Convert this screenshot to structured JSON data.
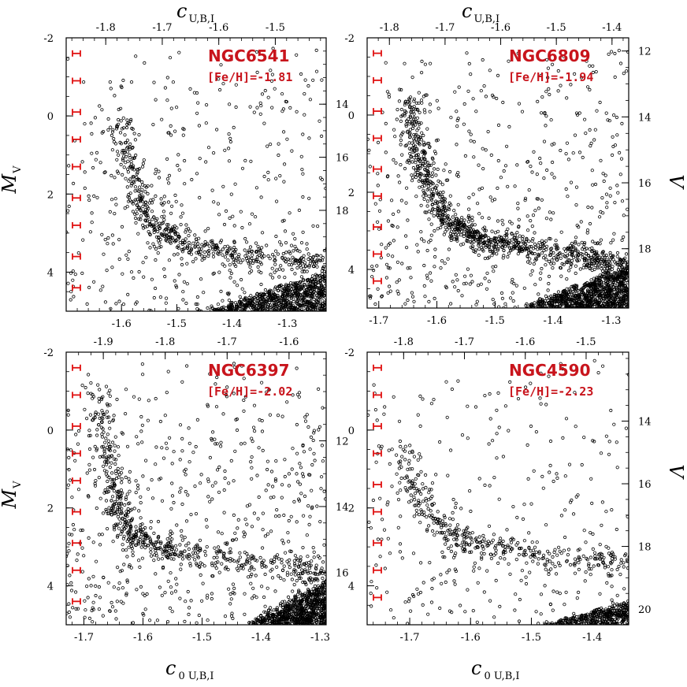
{
  "colors": {
    "label": "#c8141c",
    "errorbar": "#e01010",
    "points": "#000000",
    "frame": "#000000"
  },
  "axis_titles": {
    "top_main": "c",
    "top_sub": "U,B,I",
    "bottom_main": "c",
    "bottom_sub": "0 U,B,I",
    "left_main": "M",
    "left_sub": "V",
    "right": "V"
  },
  "chart_data": [
    {
      "type": "scatter",
      "cluster": "NGC6541",
      "feh_label": "[Fe/H]=-1.81",
      "xlim": [
        -1.7,
        -1.23
      ],
      "ylim": [
        5.0,
        -2.0
      ],
      "xticks": [
        -1.6,
        -1.5,
        -1.4,
        -1.3
      ],
      "xtick_labels": [
        "-1.6",
        "-1.5",
        "-1.4",
        "-1.3"
      ],
      "yticks": [
        -2,
        0,
        2,
        4
      ],
      "ytick_labels": [
        "-2",
        "0",
        "2",
        "4"
      ],
      "top_xlim": [
        -1.87,
        -1.41
      ],
      "top_xticks": [
        -1.8,
        -1.7,
        -1.6,
        -1.5
      ],
      "top_xtick_labels": [
        "-1.8",
        "-1.7",
        "-1.6",
        "-1.5"
      ],
      "right_ylim": [
        11.5,
        21.8
      ],
      "right_yticks": [
        14,
        16,
        18
      ],
      "right_ytick_labels": [
        "14",
        "16",
        "18"
      ],
      "errorbar_y": [
        -1.6,
        -0.9,
        -0.1,
        0.6,
        1.3,
        2.1,
        2.8,
        3.6,
        4.4
      ],
      "errorbar_halfwidth": 0.006,
      "sequence": {
        "rgb": [
          [
            -1.6,
            0.0
          ],
          [
            -1.59,
            1.0
          ],
          [
            -1.575,
            1.8
          ],
          [
            -1.555,
            2.5
          ],
          [
            -1.525,
            3.0
          ],
          [
            -1.48,
            3.3
          ],
          [
            -1.4,
            3.5
          ],
          [
            -1.3,
            3.7
          ],
          [
            -1.23,
            3.85
          ]
        ],
        "ms_xrange": [
          -1.45,
          -1.23
        ],
        "ms_top": 4.0
      },
      "n_rgb": 520,
      "n_field": 420,
      "n_ms": 900
    },
    {
      "type": "scatter",
      "cluster": "NGC6809",
      "feh_label": "[Fe/H]=-1.94",
      "xlim": [
        -1.72,
        -1.27
      ],
      "ylim": [
        5.0,
        -2.0
      ],
      "xticks": [
        -1.7,
        -1.6,
        -1.5,
        -1.4,
        -1.3
      ],
      "xtick_labels": [
        "-1.7",
        "-1.6",
        "-1.5",
        "-1.4",
        "-1.3"
      ],
      "yticks": [
        -2,
        0,
        2,
        4
      ],
      "ytick_labels": [
        "-2",
        "0",
        "2",
        "4"
      ],
      "top_xlim": [
        -1.84,
        -1.37
      ],
      "top_xticks": [
        -1.8,
        -1.7,
        -1.6,
        -1.5,
        -1.4
      ],
      "top_xtick_labels": [
        "-1.8",
        "-1.7",
        "-1.6",
        "-1.5",
        "-1.4"
      ],
      "right_ylim": [
        11.6,
        19.8
      ],
      "right_yticks": [
        12,
        14,
        16,
        18
      ],
      "right_ytick_labels": [
        "12",
        "14",
        "16",
        "18"
      ],
      "errorbar_y": [
        -1.6,
        -0.9,
        -0.1,
        0.6,
        1.4,
        2.1,
        2.9,
        3.6,
        4.3
      ],
      "errorbar_halfwidth": 0.006,
      "sequence": {
        "rgb": [
          [
            -1.645,
            -0.5
          ],
          [
            -1.64,
            0.5
          ],
          [
            -1.625,
            1.4
          ],
          [
            -1.6,
            2.3
          ],
          [
            -1.57,
            2.9
          ],
          [
            -1.52,
            3.25
          ],
          [
            -1.45,
            3.45
          ],
          [
            -1.35,
            3.7
          ],
          [
            -1.27,
            3.9
          ]
        ],
        "ms_xrange": [
          -1.45,
          -1.27
        ],
        "ms_top": 3.9
      },
      "n_rgb": 900,
      "n_field": 520,
      "n_ms": 1100
    },
    {
      "type": "scatter",
      "cluster": "NGC6397",
      "feh_label": "[Fe/H]=-2.02",
      "xlim": [
        -1.73,
        -1.29
      ],
      "ylim": [
        5.0,
        -2.0
      ],
      "xticks": [
        -1.7,
        -1.6,
        -1.5,
        -1.4,
        -1.3
      ],
      "xtick_labels": [
        "-1.7",
        "-1.6",
        "-1.5",
        "-1.4",
        "-1.3"
      ],
      "yticks": [
        -2,
        0,
        2,
        4
      ],
      "ytick_labels": [
        "-2",
        "0",
        "2",
        "4"
      ],
      "top_xlim": [
        -1.96,
        -1.54
      ],
      "top_xticks": [
        -1.9,
        -1.8,
        -1.7,
        -1.6
      ],
      "top_xtick_labels": [
        "-1.9",
        "-1.8",
        "-1.7",
        "-1.6"
      ],
      "right_ylim": [
        9.3,
        17.6
      ],
      "right_yticks": [
        12,
        14,
        16
      ],
      "right_ytick_labels": [
        "12",
        "14",
        "16"
      ],
      "errorbar_y": [
        -1.6,
        -0.9,
        -0.1,
        0.6,
        1.3,
        2.1,
        2.9,
        3.6,
        4.4
      ],
      "errorbar_halfwidth": 0.006,
      "sequence": {
        "rgb": [
          [
            -1.68,
            -1.0
          ],
          [
            -1.67,
            0.0
          ],
          [
            -1.655,
            1.0
          ],
          [
            -1.645,
            1.8
          ],
          [
            -1.63,
            2.5
          ],
          [
            -1.6,
            2.9
          ],
          [
            -1.55,
            3.1
          ],
          [
            -1.45,
            3.3
          ],
          [
            -1.35,
            3.55
          ],
          [
            -1.29,
            3.75
          ]
        ],
        "ms_xrange": [
          -1.42,
          -1.29
        ],
        "ms_top": 3.9
      },
      "n_rgb": 600,
      "n_field": 560,
      "n_ms": 900
    },
    {
      "type": "scatter",
      "cluster": "NGC4590",
      "feh_label": "[Fe/H]=-2.23",
      "xlim": [
        -1.77,
        -1.34
      ],
      "ylim": [
        5.0,
        -2.0
      ],
      "xticks": [
        -1.7,
        -1.6,
        -1.5,
        -1.4
      ],
      "xtick_labels": [
        "-1.7",
        "-1.6",
        "-1.5",
        "-1.4"
      ],
      "yticks": [
        -2,
        0,
        2,
        4
      ],
      "ytick_labels": [
        "-2",
        "0",
        "2",
        "4"
      ],
      "top_xlim": [
        -1.86,
        -1.43
      ],
      "top_xticks": [
        -1.8,
        -1.7,
        -1.6,
        -1.5
      ],
      "top_xtick_labels": [
        "-1.8",
        "-1.7",
        "-1.6",
        "-1.5"
      ],
      "right_ylim": [
        11.8,
        20.5
      ],
      "right_yticks": [
        14,
        16,
        18,
        20
      ],
      "right_ytick_labels": [
        "14",
        "16",
        "18",
        "20"
      ],
      "errorbar_y": [
        -1.6,
        -0.9,
        -0.1,
        0.6,
        1.4,
        2.1,
        2.9,
        3.6,
        4.3
      ],
      "errorbar_halfwidth": 0.006,
      "sequence": {
        "rgb": [
          [
            -1.71,
            0.4
          ],
          [
            -1.7,
            1.1
          ],
          [
            -1.685,
            1.7
          ],
          [
            -1.665,
            2.2
          ],
          [
            -1.64,
            2.6
          ],
          [
            -1.6,
            2.9
          ],
          [
            -1.55,
            3.05
          ],
          [
            -1.48,
            3.2
          ],
          [
            -1.4,
            3.35
          ],
          [
            -1.34,
            3.45
          ]
        ],
        "ms_xrange": [
          -1.48,
          -1.34
        ],
        "ms_top": 4.4
      },
      "n_rgb": 380,
      "n_field": 300,
      "n_ms": 520
    }
  ]
}
